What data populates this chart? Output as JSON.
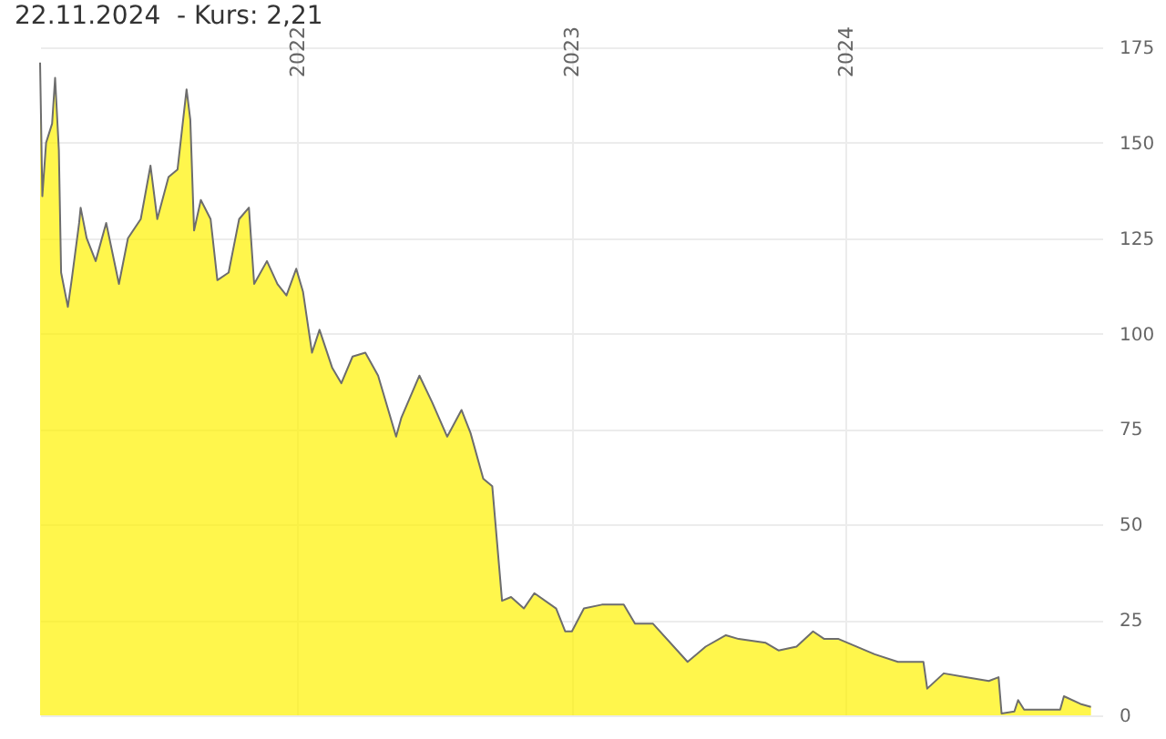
{
  "chart_data": {
    "type": "area",
    "title": "22.11.2024  - Kurs: 2,21",
    "x": [
      "2021-01-23",
      "2021-01-26",
      "2021-01-31",
      "2021-02-08",
      "2021-02-12",
      "2021-02-17",
      "2021-02-20",
      "2021-03-01",
      "2021-03-06",
      "2021-03-16",
      "2021-03-18",
      "2021-03-26",
      "2021-04-07",
      "2021-04-21",
      "2021-05-08",
      "2021-05-20",
      "2021-06-06",
      "2021-06-19",
      "2021-06-28",
      "2021-07-13",
      "2021-07-25",
      "2021-08-06",
      "2021-08-11",
      "2021-08-16",
      "2021-08-25",
      "2021-09-07",
      "2021-09-16",
      "2021-10-01",
      "2021-10-15",
      "2021-10-28",
      "2021-11-04",
      "2021-11-21",
      "2021-12-05",
      "2021-12-17",
      "2021-12-30",
      "2022-01-08",
      "2022-01-20",
      "2022-01-30",
      "2022-02-16",
      "2022-02-28",
      "2022-03-15",
      "2022-04-01",
      "2022-04-18",
      "2022-05-12",
      "2022-05-19",
      "2022-06-12",
      "2022-06-29",
      "2022-07-19",
      "2022-08-07",
      "2022-08-19",
      "2022-09-05",
      "2022-09-17",
      "2022-09-30",
      "2022-10-12",
      "2022-10-29",
      "2022-11-12",
      "2022-12-11",
      "2022-12-23",
      "2023-01-01",
      "2023-01-17",
      "2023-02-10",
      "2023-03-11",
      "2023-03-26",
      "2023-04-19",
      "2023-06-04",
      "2023-06-28",
      "2023-07-25",
      "2023-08-11",
      "2023-09-16",
      "2023-10-03",
      "2023-10-27",
      "2023-11-18",
      "2023-12-03",
      "2023-12-22",
      "2024-02-08",
      "2024-03-10",
      "2024-04-13",
      "2024-04-18",
      "2024-05-10",
      "2024-06-08",
      "2024-07-09",
      "2024-07-22",
      "2024-07-26",
      "2024-08-12",
      "2024-08-17",
      "2024-08-25",
      "2024-10-12",
      "2024-10-17",
      "2024-11-08",
      "2024-11-22"
    ],
    "series": [
      {
        "color": "#fff200",
        "values": [
          171,
          136,
          150,
          155,
          167,
          148,
          116,
          107,
          114,
          129,
          133,
          125,
          119,
          129,
          113,
          125,
          130,
          144,
          130,
          141,
          143,
          164,
          156,
          127,
          135,
          130,
          114,
          116,
          130,
          133,
          113,
          119,
          113,
          110,
          117,
          111,
          95,
          101,
          91,
          87,
          94,
          95,
          89,
          73,
          78,
          89,
          82,
          73,
          80,
          74,
          62,
          60,
          30,
          31,
          28,
          32,
          28,
          22,
          22,
          28,
          29,
          29,
          24,
          24,
          14,
          18,
          21,
          20,
          19,
          17,
          18,
          22,
          20,
          20,
          16,
          14,
          14,
          7,
          11,
          10,
          9,
          10,
          0.5,
          1,
          4,
          1.5,
          1.5,
          5,
          3,
          2.21
        ]
      }
    ],
    "xlim": [
      "2021-01-23",
      "2024-12-07"
    ],
    "xticks": [
      {
        "value": "2022",
        "label": "2022"
      },
      {
        "value": "2023",
        "label": "2023"
      },
      {
        "value": "2024",
        "label": "2024"
      }
    ],
    "ylim": [
      0,
      175
    ],
    "yticks": [
      0,
      25,
      50,
      75,
      100,
      125,
      150,
      175
    ],
    "grid": true
  }
}
